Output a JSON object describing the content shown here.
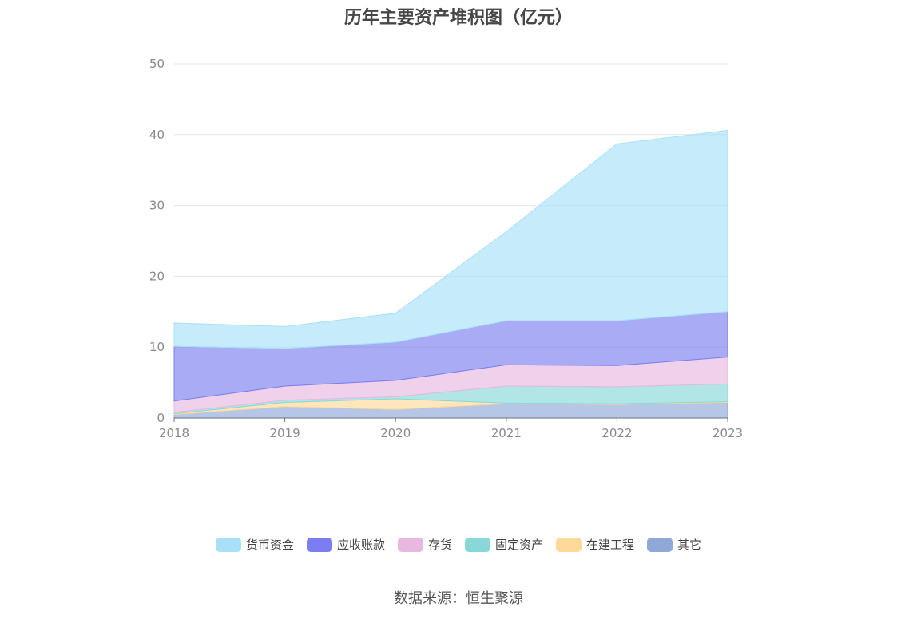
{
  "source_text": "数据来源：恒生聚源",
  "chart_data": {
    "type": "area",
    "stacked": true,
    "title": "历年主要资产堆积图（亿元）",
    "x": [
      "2018",
      "2019",
      "2020",
      "2021",
      "2022",
      "2023"
    ],
    "ylim": [
      0,
      50
    ],
    "yticks": [
      0,
      10,
      20,
      30,
      40,
      50
    ],
    "grid": true,
    "legend_position": "bottom",
    "series": [
      {
        "name": "其它",
        "color": "#8fa8d8",
        "values": [
          0.5,
          1.6,
          1.2,
          2.0,
          1.9,
          2.2
        ]
      },
      {
        "name": "在建工程",
        "color": "#ffd999",
        "values": [
          0.1,
          0.6,
          1.5,
          0.1,
          0.1,
          0.1
        ]
      },
      {
        "name": "固定资产",
        "color": "#88d8d8",
        "values": [
          0.2,
          0.3,
          0.3,
          2.4,
          2.4,
          2.5
        ]
      },
      {
        "name": "存货",
        "color": "#e8b8e0",
        "values": [
          1.6,
          2.0,
          2.3,
          3.0,
          3.0,
          3.8
        ]
      },
      {
        "name": "应收账款",
        "color": "#7b7ef0",
        "values": [
          7.7,
          5.3,
          5.4,
          6.2,
          6.3,
          6.4
        ]
      },
      {
        "name": "货币资金",
        "color": "#a8e0f8",
        "values": [
          3.3,
          3.1,
          4.1,
          12.6,
          25.0,
          25.6
        ]
      }
    ],
    "legend_order": [
      "货币资金",
      "应收账款",
      "存货",
      "固定资产",
      "在建工程",
      "其它"
    ]
  }
}
